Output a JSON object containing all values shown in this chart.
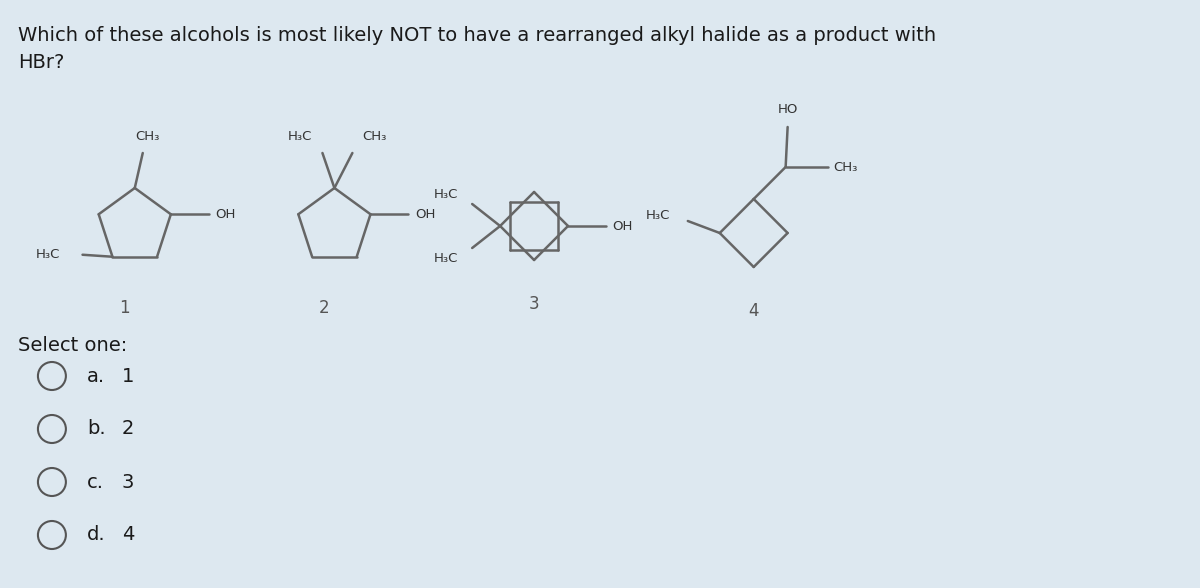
{
  "bg_color": "#dde8f0",
  "title_line1": "Which of these alcohols is most likely NOT to have a rearranged alkyl halide as a product with",
  "title_line2": "HBr?",
  "title_fontsize": 14,
  "title_color": "#1a1a1a",
  "select_text": "Select one:",
  "options": [
    {
      "letter": "a.",
      "value": "1"
    },
    {
      "letter": "b.",
      "value": "2"
    },
    {
      "letter": "c.",
      "value": "3"
    },
    {
      "letter": "d.",
      "value": "4"
    }
  ],
  "option_fontsize": 14,
  "structure_color": "#666666",
  "numbers": [
    "1",
    "2",
    "3",
    "4"
  ],
  "struct_lw": 1.8,
  "label_fs": 9.5
}
